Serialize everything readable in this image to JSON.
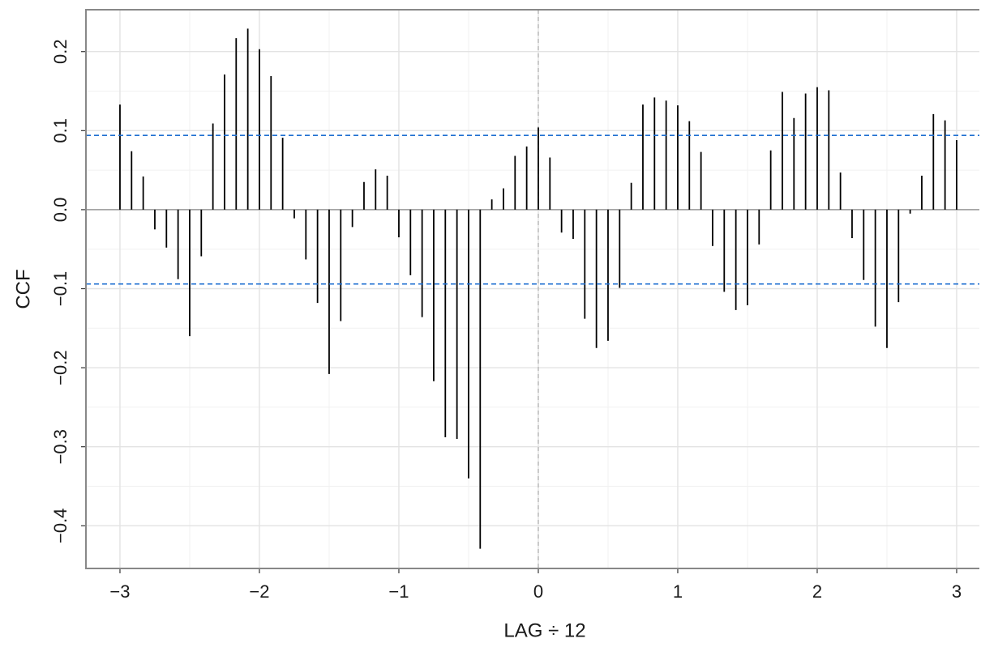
{
  "chart_data": {
    "type": "stem",
    "x_label": "LAG ÷ 12",
    "y_label": "CCF",
    "x": [
      -3,
      -2.9167,
      -2.8333,
      -2.75,
      -2.6667,
      -2.5833,
      -2.5,
      -2.4167,
      -2.3333,
      -2.25,
      -2.1667,
      -2.0833,
      -2,
      -1.9167,
      -1.8333,
      -1.75,
      -1.6667,
      -1.5833,
      -1.5,
      -1.4167,
      -1.3333,
      -1.25,
      -1.1667,
      -1.0833,
      -1,
      -0.9167,
      -0.8333,
      -0.75,
      -0.6667,
      -0.5833,
      -0.5,
      -0.4167,
      -0.3333,
      -0.25,
      -0.1667,
      -0.0833,
      0,
      0.0833,
      0.1667,
      0.25,
      0.3333,
      0.4167,
      0.5,
      0.5833,
      0.6667,
      0.75,
      0.8333,
      0.9167,
      1,
      1.0833,
      1.1667,
      1.25,
      1.3333,
      1.4167,
      1.5,
      1.5833,
      1.6667,
      1.75,
      1.8333,
      1.9167,
      2,
      2.0833,
      2.1667,
      2.25,
      2.3333,
      2.4167,
      2.5,
      2.5833,
      2.6667,
      2.75,
      2.8333,
      2.9167,
      3
    ],
    "values": [
      0.133,
      0.074,
      0.042,
      -0.025,
      -0.048,
      -0.088,
      -0.16,
      -0.059,
      0.109,
      0.171,
      0.217,
      0.229,
      0.203,
      0.169,
      0.091,
      -0.011,
      -0.063,
      -0.118,
      -0.208,
      -0.141,
      -0.022,
      0.035,
      0.051,
      0.043,
      -0.035,
      -0.083,
      -0.136,
      -0.217,
      -0.288,
      -0.29,
      -0.34,
      -0.429,
      0.013,
      0.027,
      0.068,
      0.08,
      0.104,
      0.066,
      -0.029,
      -0.037,
      -0.138,
      -0.175,
      -0.166,
      -0.099,
      0.034,
      0.133,
      0.142,
      0.138,
      0.132,
      0.112,
      0.073,
      -0.046,
      -0.104,
      -0.127,
      -0.121,
      -0.044,
      0.075,
      0.149,
      0.116,
      0.147,
      0.155,
      0.151,
      0.047,
      -0.036,
      -0.089,
      -0.148,
      -0.175,
      -0.117,
      -0.005,
      0.043,
      0.121,
      0.113,
      0.088
    ],
    "color": "#000000",
    "confidence_bounds": [
      0.094,
      -0.094
    ],
    "bound_color": "#1f6fd1",
    "xlim": [
      -3.244,
      3.163
    ],
    "ylim": [
      -0.454,
      0.253
    ],
    "xticks": [
      {
        "value": -3,
        "label": "−3"
      },
      {
        "value": -2,
        "label": "−2"
      },
      {
        "value": -1,
        "label": "−1"
      },
      0,
      1,
      2,
      3
    ],
    "yticks": [
      {
        "value": -0.4,
        "label": "−0.4"
      },
      {
        "value": -0.3,
        "label": "−0.3"
      },
      {
        "value": -0.2,
        "label": "−0.2"
      },
      {
        "value": -0.1,
        "label": "−0.1"
      },
      {
        "value": 0,
        "label": "0.0"
      },
      0.1,
      0.2
    ],
    "grid": true
  }
}
